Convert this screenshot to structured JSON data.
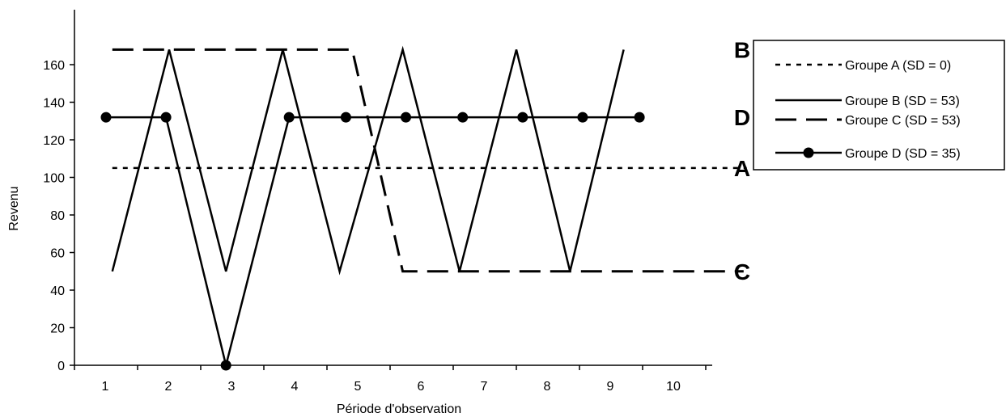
{
  "chart_data": {
    "type": "line",
    "title": "",
    "xlabel": "Période d'observation",
    "ylabel": "Revenu",
    "ylim": [
      0,
      180
    ],
    "yticks": [
      0,
      20,
      40,
      60,
      80,
      100,
      120,
      140,
      160
    ],
    "x_categories": [
      "1",
      "2",
      "3",
      "4",
      "5",
      "6",
      "7",
      "8",
      "9",
      "10"
    ],
    "grid": false,
    "legend_position": "right",
    "series": [
      {
        "name": "Groupe A (SD = 0)",
        "end_label": "A",
        "style": "dotted",
        "color": "#000000",
        "points": [
          [
            0.6,
            105
          ],
          [
            10.65,
            105
          ]
        ]
      },
      {
        "name": "Groupe B (SD = 53)",
        "end_label": "B",
        "style": "solid",
        "color": "#000000",
        "points": [
          [
            0.6,
            50
          ],
          [
            1.5,
            168
          ],
          [
            2.4,
            50
          ],
          [
            3.3,
            168
          ],
          [
            4.2,
            50
          ],
          [
            5.2,
            168
          ],
          [
            6.1,
            50
          ],
          [
            7.0,
            168
          ],
          [
            7.85,
            50
          ],
          [
            8.7,
            168
          ]
        ]
      },
      {
        "name": "Groupe C (SD = 53)",
        "end_label": "C",
        "style": "dashed",
        "color": "#000000",
        "points": [
          [
            0.6,
            168
          ],
          [
            4.4,
            168
          ],
          [
            5.2,
            50
          ],
          [
            10.6,
            50
          ]
        ]
      },
      {
        "name": "Groupe D (SD = 35)",
        "end_label": "D",
        "style": "solid-markers",
        "color": "#000000",
        "points": [
          [
            0.5,
            132
          ],
          [
            1.45,
            132
          ],
          [
            2.4,
            0
          ],
          [
            3.4,
            132
          ],
          [
            4.3,
            132
          ],
          [
            5.25,
            132
          ],
          [
            6.15,
            132
          ],
          [
            7.1,
            132
          ],
          [
            8.05,
            132
          ],
          [
            8.95,
            132
          ]
        ]
      }
    ]
  }
}
